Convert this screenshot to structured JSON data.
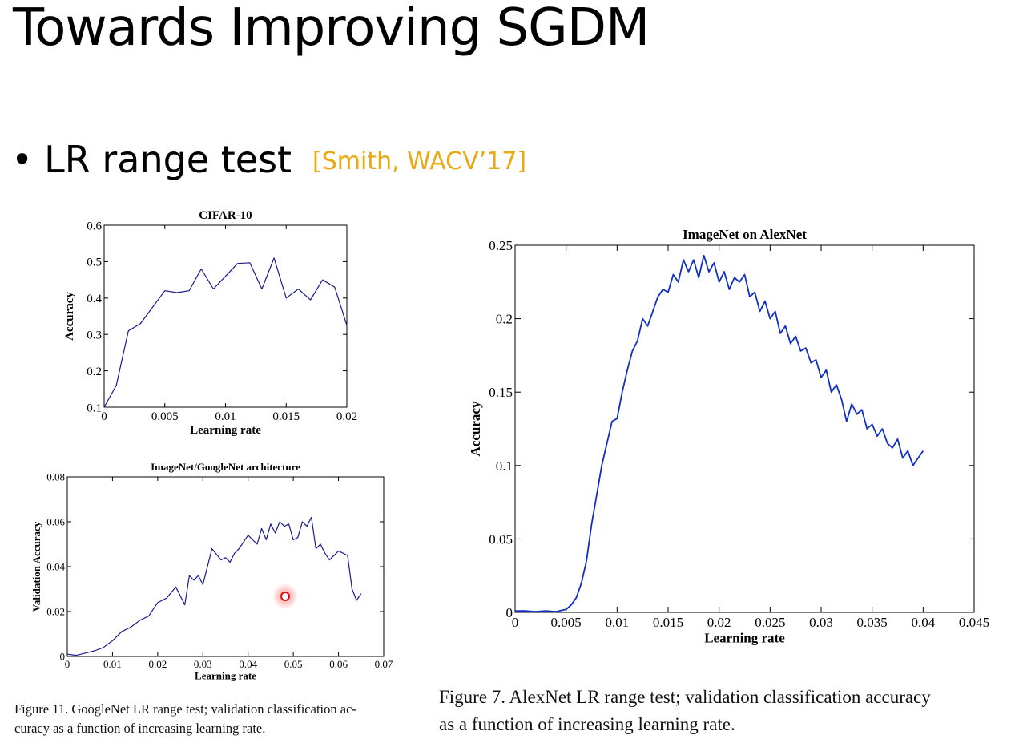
{
  "slide": {
    "title": "Towards Improving SGDM",
    "bullet": "LR range test",
    "citation": "[Smith, WACV’17]"
  },
  "captions": {
    "googlenet": [
      "Figure 11. GoogleNet LR range test; validation classification ac-",
      "curacy as a function of increasing learning rate."
    ],
    "alexnet": [
      "Figure 7. AlexNet LR range test; validation classification accuracy",
      "as a function of increasing learning rate."
    ]
  },
  "chart_data": [
    {
      "type": "line",
      "title": "CIFAR-10",
      "xlabel": "Learning rate",
      "ylabel": "Accuracy",
      "xlim": [
        0,
        0.02
      ],
      "ylim": [
        0.1,
        0.6
      ],
      "xticks": [
        "0",
        "0.005",
        "0.01",
        "0.015",
        "0.02"
      ],
      "yticks": [
        "0.1",
        "0.2",
        "0.3",
        "0.4",
        "0.5",
        "0.6"
      ],
      "color": "#1a1a8c",
      "x": [
        0,
        0.001,
        0.002,
        0.003,
        0.004,
        0.005,
        0.006,
        0.007,
        0.008,
        0.009,
        0.01,
        0.011,
        0.012,
        0.013,
        0.014,
        0.015,
        0.016,
        0.017,
        0.018,
        0.019,
        0.02
      ],
      "y": [
        0.1,
        0.16,
        0.31,
        0.33,
        0.375,
        0.42,
        0.415,
        0.42,
        0.48,
        0.425,
        0.46,
        0.495,
        0.497,
        0.425,
        0.51,
        0.4,
        0.425,
        0.395,
        0.45,
        0.43,
        0.325
      ]
    },
    {
      "type": "line",
      "title": "ImageNet/GoogleNet architecture",
      "xlabel": "Learning rate",
      "ylabel": "Validation Accuracy",
      "xlim": [
        0,
        0.07
      ],
      "ylim": [
        0,
        0.08
      ],
      "xticks": [
        "0",
        "0.01",
        "0.02",
        "0.03",
        "0.04",
        "0.05",
        "0.06",
        "0.07"
      ],
      "yticks": [
        "0",
        "0.02",
        "0.04",
        "0.06",
        "0.08"
      ],
      "color": "#1a1a8c",
      "x": [
        0,
        0.002,
        0.004,
        0.006,
        0.008,
        0.01,
        0.012,
        0.014,
        0.016,
        0.018,
        0.02,
        0.022,
        0.024,
        0.026,
        0.027,
        0.028,
        0.029,
        0.03,
        0.032,
        0.034,
        0.035,
        0.036,
        0.037,
        0.038,
        0.04,
        0.042,
        0.043,
        0.044,
        0.045,
        0.046,
        0.047,
        0.048,
        0.049,
        0.05,
        0.051,
        0.052,
        0.053,
        0.054,
        0.055,
        0.056,
        0.057,
        0.058,
        0.06,
        0.062,
        0.063,
        0.064,
        0.065
      ],
      "y": [
        0.001,
        0.0005,
        0.0015,
        0.0025,
        0.004,
        0.007,
        0.011,
        0.013,
        0.016,
        0.018,
        0.024,
        0.026,
        0.031,
        0.023,
        0.036,
        0.034,
        0.036,
        0.032,
        0.048,
        0.043,
        0.044,
        0.042,
        0.046,
        0.048,
        0.054,
        0.05,
        0.057,
        0.052,
        0.059,
        0.055,
        0.06,
        0.058,
        0.059,
        0.052,
        0.053,
        0.06,
        0.058,
        0.062,
        0.048,
        0.05,
        0.046,
        0.043,
        0.047,
        0.045,
        0.03,
        0.025,
        0.028
      ]
    },
    {
      "type": "line",
      "title": "ImageNet on AlexNet",
      "xlabel": "Learning rate",
      "ylabel": "Accuracy",
      "xlim": [
        0,
        0.045
      ],
      "ylim": [
        0,
        0.25
      ],
      "xticks": [
        "0",
        "0.005",
        "0.01",
        "0.015",
        "0.02",
        "0.025",
        "0.03",
        "0.035",
        "0.04",
        "0.045"
      ],
      "yticks": [
        "0",
        "0.05",
        "0.1",
        "0.15",
        "0.2",
        "0.25"
      ],
      "color": "#1030c0",
      "x": [
        0,
        0.001,
        0.002,
        0.003,
        0.004,
        0.005,
        0.0055,
        0.006,
        0.0065,
        0.007,
        0.0075,
        0.008,
        0.0085,
        0.009,
        0.0095,
        0.01,
        0.0105,
        0.011,
        0.0115,
        0.012,
        0.0125,
        0.013,
        0.0135,
        0.014,
        0.0145,
        0.015,
        0.0155,
        0.016,
        0.0165,
        0.017,
        0.0175,
        0.018,
        0.0185,
        0.019,
        0.0195,
        0.02,
        0.0205,
        0.021,
        0.0215,
        0.022,
        0.0225,
        0.023,
        0.0235,
        0.024,
        0.0245,
        0.025,
        0.0255,
        0.026,
        0.0265,
        0.027,
        0.0275,
        0.028,
        0.0285,
        0.029,
        0.0295,
        0.03,
        0.0305,
        0.031,
        0.0315,
        0.032,
        0.0325,
        0.033,
        0.0335,
        0.034,
        0.0345,
        0.035,
        0.0355,
        0.036,
        0.0365,
        0.037,
        0.0375,
        0.038,
        0.0385,
        0.039,
        0.0395,
        0.04
      ],
      "y": [
        0.001,
        0.001,
        0.0005,
        0.001,
        0.0005,
        0.002,
        0.005,
        0.01,
        0.02,
        0.035,
        0.06,
        0.08,
        0.1,
        0.115,
        0.13,
        0.132,
        0.15,
        0.165,
        0.178,
        0.185,
        0.2,
        0.195,
        0.205,
        0.215,
        0.22,
        0.218,
        0.23,
        0.225,
        0.24,
        0.232,
        0.24,
        0.228,
        0.243,
        0.232,
        0.238,
        0.225,
        0.232,
        0.22,
        0.228,
        0.225,
        0.23,
        0.215,
        0.218,
        0.205,
        0.212,
        0.2,
        0.205,
        0.19,
        0.195,
        0.183,
        0.188,
        0.178,
        0.18,
        0.17,
        0.172,
        0.16,
        0.165,
        0.15,
        0.155,
        0.145,
        0.13,
        0.142,
        0.135,
        0.138,
        0.125,
        0.128,
        0.12,
        0.125,
        0.115,
        0.112,
        0.118,
        0.105,
        0.11,
        0.1,
        0.105,
        0.11
      ]
    }
  ]
}
